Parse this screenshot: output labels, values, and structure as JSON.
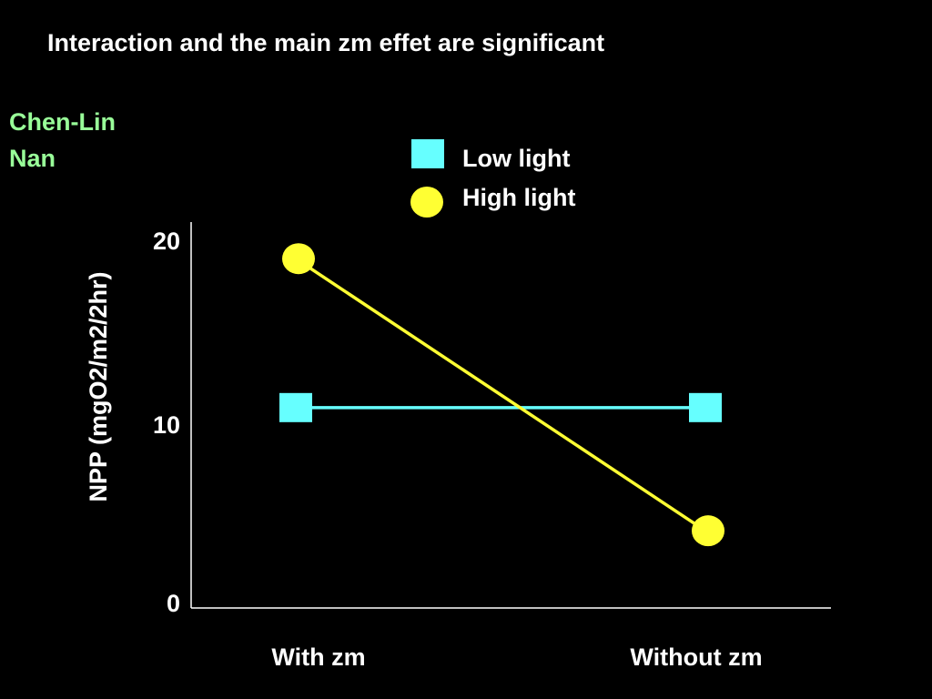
{
  "slide": {
    "title": "Interaction and the main zm effet are significant",
    "author_line1": "Chen-Lin",
    "author_line2": "Nan"
  },
  "colors": {
    "background": "#000000",
    "text": "#ffffff",
    "author": "#99ff99",
    "low_light": "#66ffff",
    "high_light": "#ffff33",
    "axis": "#ffffff"
  },
  "chart_data": {
    "type": "line",
    "categories": [
      "With zm",
      "Without zm"
    ],
    "ylabel": "NPP (mgO2/m2/2hr)",
    "yticks": [
      0,
      10,
      20
    ],
    "ylim": [
      0,
      20
    ],
    "legend_placement": "top",
    "grid": false,
    "series": [
      {
        "name": "Low light",
        "marker": "square",
        "color": "#66ffff",
        "values": [
          10.9,
          10.9
        ]
      },
      {
        "name": "High light",
        "marker": "circle",
        "color": "#ffff33",
        "values": [
          19.0,
          4.2
        ]
      }
    ]
  }
}
